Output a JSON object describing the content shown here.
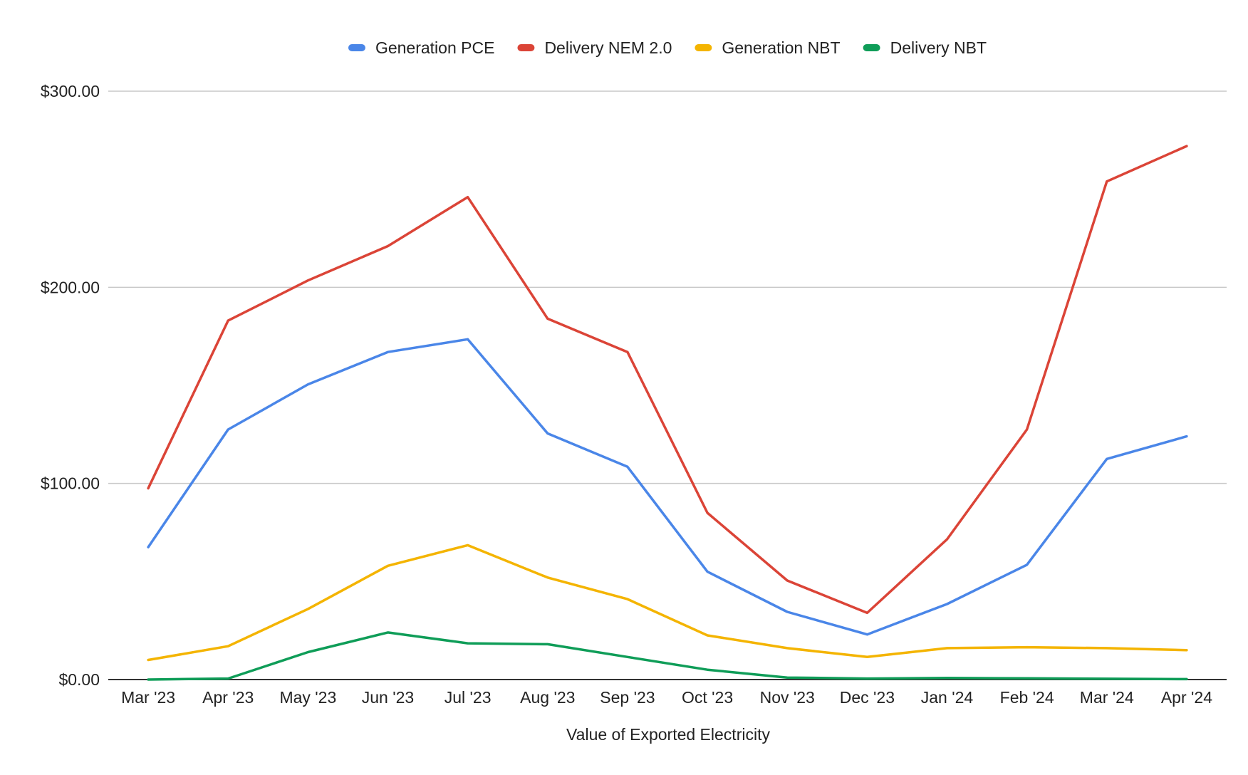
{
  "chart_data": {
    "type": "line",
    "title": "",
    "xlabel": "Value of Exported Electricity",
    "ylabel": "",
    "categories": [
      "Mar '23",
      "Apr '23",
      "May '23",
      "Jun '23",
      "Jul '23",
      "Aug '23",
      "Sep '23",
      "Oct '23",
      "Nov '23",
      "Dec '23",
      "Jan '24",
      "Feb '24",
      "Mar '24",
      "Apr '24"
    ],
    "y_ticks": [
      "$0.00",
      "$100.00",
      "$200.00",
      "$300.00"
    ],
    "ylim": [
      0,
      300
    ],
    "grid": true,
    "legend_position": "top",
    "series": [
      {
        "name": "Generation PCE",
        "color": "#4a86e8",
        "values": [
          67.5,
          127.5,
          150.5,
          167.0,
          173.5,
          125.5,
          108.5,
          55.0,
          34.5,
          23.0,
          38.5,
          58.5,
          112.5,
          124.0
        ]
      },
      {
        "name": "Delivery NEM 2.0",
        "color": "#db4437",
        "values": [
          97.5,
          183.0,
          203.5,
          221.0,
          246.0,
          184.0,
          167.0,
          85.0,
          50.5,
          34.0,
          71.5,
          127.5,
          254.0,
          272.0
        ]
      },
      {
        "name": "Generation NBT",
        "color": "#f4b400",
        "values": [
          10.0,
          17.0,
          36.0,
          58.0,
          68.5,
          52.0,
          41.0,
          22.5,
          16.0,
          11.5,
          16.0,
          16.5,
          16.0,
          15.0
        ]
      },
      {
        "name": "Delivery NBT",
        "color": "#0f9d58",
        "values": [
          0.0,
          0.5,
          14.0,
          24.0,
          18.5,
          18.0,
          11.5,
          5.0,
          1.0,
          0.5,
          0.8,
          0.6,
          0.4,
          0.2
        ]
      }
    ]
  }
}
